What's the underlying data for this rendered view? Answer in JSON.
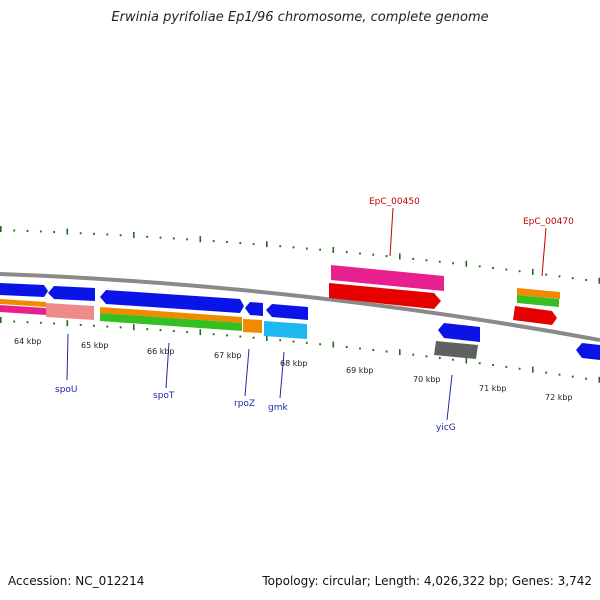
{
  "title": "Erwinia pyrifoliae Ep1/96 chromosome, complete genome",
  "footer": {
    "accession": "Accession: NC_012214",
    "topology": "Topology: circular; Length: 4,026,322 bp; Genes: 3,742"
  },
  "colors": {
    "backbone": "#8a8a8a",
    "cds_blue": "#0a14e6",
    "rna_red": "#e60000",
    "magenta": "#e8208f",
    "orange": "#f08a00",
    "green": "#34c020",
    "cyan": "#1eb8f0",
    "pink": "#ef8a8a",
    "gray": "#606060",
    "tick": "#1e6e14"
  },
  "kbp_ticks": [
    "64 kbp",
    "65 kbp",
    "66 kbp",
    "67 kbp",
    "68 kbp",
    "69 kbp",
    "70 kbp",
    "71 kbp",
    "72 kbp"
  ],
  "gene_labels": [
    {
      "name": "spoU",
      "color": "blue"
    },
    {
      "name": "spoT",
      "color": "blue"
    },
    {
      "name": "rpoZ",
      "color": "blue"
    },
    {
      "name": "gmk",
      "color": "blue"
    },
    {
      "name": "yicG",
      "color": "blue"
    },
    {
      "name": "EpC_00450",
      "color": "red"
    },
    {
      "name": "EpC_00470",
      "color": "red"
    }
  ]
}
